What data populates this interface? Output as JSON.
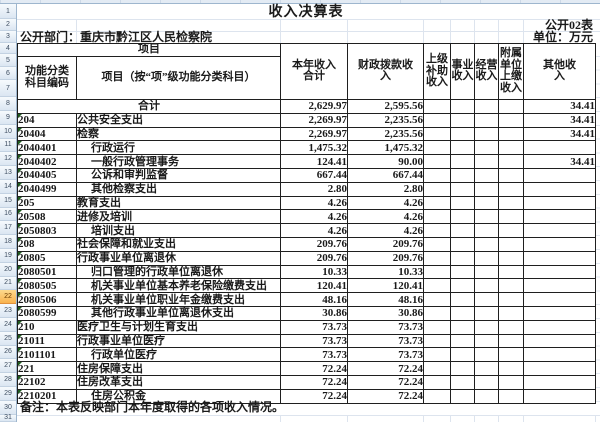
{
  "sheet": {
    "title": "收入决算表",
    "table_code": "公开02表",
    "department": "公开部门：重庆市黔江区人民检察院",
    "unit": "单位：万元",
    "note": "备注：本表反映部门本年度取得的各项收入情况。"
  },
  "gutter": {
    "row_numbers": [
      "1",
      "2",
      "3",
      "4",
      "5",
      "6",
      "7",
      "8",
      "9",
      "10",
      "11",
      "12",
      "13",
      "14",
      "15",
      "16",
      "17",
      "18",
      "19",
      "20",
      "21",
      "22",
      "23",
      "24",
      "25",
      "26",
      "27",
      "28",
      "29",
      "30",
      "31"
    ],
    "selected_row": "22"
  },
  "colors": {
    "selected_row_top": "#fdd98d",
    "selected_row_bottom": "#f9b24e",
    "gutter_blue": "#dbe6f2",
    "grid_black": "#1f1f1f",
    "faint_grid": "#dde4ee"
  },
  "table": {
    "header": {
      "project_group": "项目",
      "code_col": "功能分类\n科目编码",
      "item_col": "项目（按“项”级功能分类科目）",
      "money_cols": [
        "本年收入\n合计",
        "财政拨款收\n入",
        "上级\n补助\n收入",
        "事业\n收入",
        "经营\n收入",
        "附属\n单位\n上缴\n收入",
        "其他收\n入"
      ]
    },
    "total_row": {
      "label": "合计",
      "values": [
        "2,629.97",
        "2,595.56",
        "",
        "",
        "",
        "",
        "34.41"
      ]
    },
    "rows": [
      {
        "code": "204",
        "item": "公共安全支出",
        "indent": false,
        "values": [
          "2,269.97",
          "2,235.56",
          "",
          "",
          "",
          "",
          "34.41"
        ]
      },
      {
        "code": "20404",
        "item": "检察",
        "indent": false,
        "values": [
          "2,269.97",
          "2,235.56",
          "",
          "",
          "",
          "",
          "34.41"
        ]
      },
      {
        "code": "2040401",
        "item": "行政运行",
        "indent": true,
        "values": [
          "1,475.32",
          "1,475.32",
          "",
          "",
          "",
          "",
          ""
        ]
      },
      {
        "code": "2040402",
        "item": "一般行政管理事务",
        "indent": true,
        "values": [
          "124.41",
          "90.00",
          "",
          "",
          "",
          "",
          "34.41"
        ]
      },
      {
        "code": "2040405",
        "item": "公诉和审判监督",
        "indent": true,
        "values": [
          "667.44",
          "667.44",
          "",
          "",
          "",
          "",
          ""
        ]
      },
      {
        "code": "2040499",
        "item": "其他检察支出",
        "indent": true,
        "values": [
          "2.80",
          "2.80",
          "",
          "",
          "",
          "",
          ""
        ]
      },
      {
        "code": "205",
        "item": "教育支出",
        "indent": false,
        "values": [
          "4.26",
          "4.26",
          "",
          "",
          "",
          "",
          ""
        ]
      },
      {
        "code": "20508",
        "item": "进修及培训",
        "indent": false,
        "values": [
          "4.26",
          "4.26",
          "",
          "",
          "",
          "",
          ""
        ]
      },
      {
        "code": "2050803",
        "item": "培训支出",
        "indent": true,
        "values": [
          "4.26",
          "4.26",
          "",
          "",
          "",
          "",
          ""
        ]
      },
      {
        "code": "208",
        "item": "社会保障和就业支出",
        "indent": false,
        "values": [
          "209.76",
          "209.76",
          "",
          "",
          "",
          "",
          ""
        ]
      },
      {
        "code": "20805",
        "item": "行政事业单位离退休",
        "indent": false,
        "values": [
          "209.76",
          "209.76",
          "",
          "",
          "",
          "",
          ""
        ]
      },
      {
        "code": "2080501",
        "item": "归口管理的行政单位离退休",
        "indent": true,
        "values": [
          "10.33",
          "10.33",
          "",
          "",
          "",
          "",
          ""
        ]
      },
      {
        "code": "2080505",
        "item": "机关事业单位基本养老保险缴费支出",
        "indent": true,
        "values": [
          "120.41",
          "120.41",
          "",
          "",
          "",
          "",
          ""
        ]
      },
      {
        "code": "2080506",
        "item": "机关事业单位职业年金缴费支出",
        "indent": true,
        "values": [
          "48.16",
          "48.16",
          "",
          "",
          "",
          "",
          ""
        ]
      },
      {
        "code": "2080599",
        "item": "其他行政事业单位离退休支出",
        "indent": true,
        "values": [
          "30.86",
          "30.86",
          "",
          "",
          "",
          "",
          ""
        ]
      },
      {
        "code": "210",
        "item": "医疗卫生与计划生育支出",
        "indent": false,
        "values": [
          "73.73",
          "73.73",
          "",
          "",
          "",
          "",
          ""
        ]
      },
      {
        "code": "21011",
        "item": "行政事业单位医疗",
        "indent": false,
        "values": [
          "73.73",
          "73.73",
          "",
          "",
          "",
          "",
          ""
        ]
      },
      {
        "code": "2101101",
        "item": "行政单位医疗",
        "indent": true,
        "values": [
          "73.73",
          "73.73",
          "",
          "",
          "",
          "",
          ""
        ]
      },
      {
        "code": "221",
        "item": "住房保障支出",
        "indent": false,
        "values": [
          "72.24",
          "72.24",
          "",
          "",
          "",
          "",
          ""
        ]
      },
      {
        "code": "22102",
        "item": "住房改革支出",
        "indent": false,
        "values": [
          "72.24",
          "72.24",
          "",
          "",
          "",
          "",
          ""
        ]
      },
      {
        "code": "2210201",
        "item": "住房公积金",
        "indent": true,
        "values": [
          "72.24",
          "72.24",
          "",
          "",
          "",
          "",
          ""
        ]
      }
    ]
  }
}
